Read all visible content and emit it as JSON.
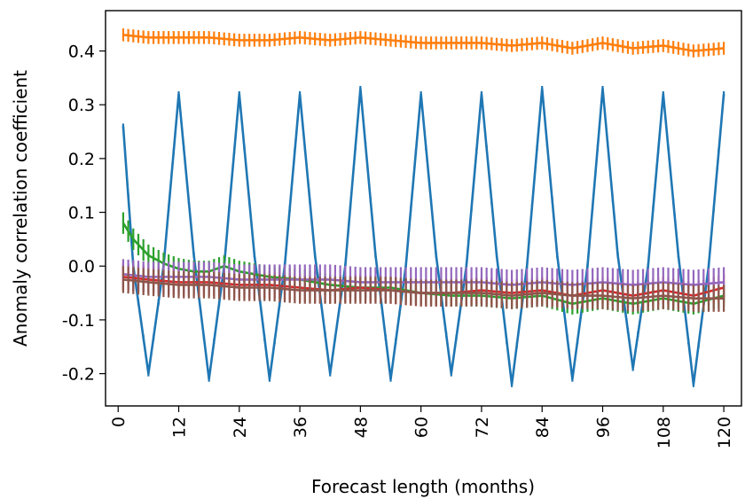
{
  "chart_data": {
    "type": "line",
    "title": "",
    "xlabel": "Forecast length (months)",
    "ylabel": "Anomaly correlation coefficient",
    "xlim": [
      -2.5,
      123.5
    ],
    "ylim": [
      -0.26,
      0.475
    ],
    "xticks": [
      0,
      12,
      24,
      36,
      48,
      60,
      72,
      84,
      96,
      108,
      120
    ],
    "xtick_labels": [
      "0",
      "12",
      "24",
      "36",
      "48",
      "60",
      "72",
      "84",
      "96",
      "108",
      "120"
    ],
    "yticks": [
      0.4,
      0.3,
      0.2,
      0.1,
      0.0,
      -0.1,
      -0.2
    ],
    "ytick_labels": [
      "0.4",
      "0.3",
      "0.2",
      "0.1",
      "0.0",
      "-0.1",
      "-0.2"
    ],
    "grid": false,
    "legend": "none",
    "colors": [
      "#1f77b4",
      "#ff7f0e",
      "#2ca02c",
      "#d62728",
      "#9467bd",
      "#8c564b"
    ],
    "series": [
      {
        "color": "#1f77b4",
        "x": [
          1,
          3,
          6,
          9,
          12,
          15,
          18,
          21,
          24,
          27,
          30,
          33,
          36,
          39,
          42,
          45,
          48,
          51,
          54,
          57,
          60,
          63,
          66,
          69,
          72,
          75,
          78,
          81,
          84,
          87,
          90,
          93,
          96,
          99,
          102,
          105,
          108,
          111,
          114,
          117,
          120
        ],
        "y": [
          0.26,
          0.0,
          -0.2,
          0.0,
          0.32,
          0.02,
          -0.21,
          0.0,
          0.32,
          0.02,
          -0.21,
          0.0,
          0.32,
          0.02,
          -0.2,
          0.0,
          0.33,
          0.02,
          -0.21,
          0.0,
          0.32,
          0.02,
          -0.2,
          0.0,
          0.32,
          0.02,
          -0.22,
          0.0,
          0.33,
          0.02,
          -0.21,
          0.0,
          0.33,
          0.02,
          -0.19,
          0.0,
          0.32,
          0.02,
          -0.22,
          0.0,
          0.32
        ],
        "err": 0.005
      },
      {
        "color": "#ff7f0e",
        "x": [
          1,
          6,
          12,
          18,
          24,
          30,
          36,
          42,
          48,
          54,
          60,
          66,
          72,
          78,
          84,
          90,
          96,
          102,
          108,
          114,
          120
        ],
        "y": [
          0.43,
          0.425,
          0.425,
          0.425,
          0.42,
          0.42,
          0.425,
          0.42,
          0.425,
          0.42,
          0.415,
          0.415,
          0.415,
          0.41,
          0.415,
          0.405,
          0.415,
          0.405,
          0.41,
          0.4,
          0.405
        ],
        "err": 0.012
      },
      {
        "color": "#2ca02c",
        "x": [
          1,
          3,
          6,
          9,
          12,
          15,
          18,
          21,
          24,
          30,
          36,
          42,
          48,
          54,
          60,
          66,
          72,
          78,
          84,
          90,
          96,
          102,
          108,
          114,
          120
        ],
        "y": [
          0.08,
          0.05,
          0.02,
          0.005,
          -0.005,
          -0.01,
          -0.01,
          0.0,
          -0.01,
          -0.02,
          -0.025,
          -0.035,
          -0.04,
          -0.04,
          -0.05,
          -0.055,
          -0.055,
          -0.06,
          -0.055,
          -0.07,
          -0.06,
          -0.07,
          -0.06,
          -0.07,
          -0.055
        ],
        "err": 0.02
      },
      {
        "color": "#d62728",
        "x": [
          1,
          6,
          12,
          18,
          24,
          30,
          36,
          42,
          48,
          54,
          60,
          66,
          72,
          78,
          84,
          90,
          96,
          102,
          108,
          114,
          120
        ],
        "y": [
          -0.02,
          -0.025,
          -0.03,
          -0.03,
          -0.035,
          -0.035,
          -0.04,
          -0.045,
          -0.04,
          -0.045,
          -0.05,
          -0.05,
          -0.045,
          -0.05,
          -0.045,
          -0.055,
          -0.045,
          -0.055,
          -0.045,
          -0.055,
          -0.04
        ],
        "err": 0.025
      },
      {
        "color": "#9467bd",
        "x": [
          1,
          6,
          12,
          18,
          24,
          30,
          36,
          42,
          48,
          54,
          60,
          66,
          72,
          78,
          84,
          90,
          96,
          102,
          108,
          114,
          120
        ],
        "y": [
          -0.015,
          -0.02,
          -0.02,
          -0.02,
          -0.025,
          -0.025,
          -0.025,
          -0.025,
          -0.03,
          -0.03,
          -0.03,
          -0.03,
          -0.03,
          -0.035,
          -0.03,
          -0.035,
          -0.03,
          -0.035,
          -0.03,
          -0.035,
          -0.03
        ],
        "err": 0.028
      },
      {
        "color": "#8c564b",
        "x": [
          1,
          6,
          12,
          18,
          24,
          30,
          36,
          42,
          48,
          54,
          60,
          66,
          72,
          78,
          84,
          90,
          96,
          102,
          108,
          114,
          120
        ],
        "y": [
          -0.025,
          -0.03,
          -0.035,
          -0.035,
          -0.04,
          -0.04,
          -0.045,
          -0.045,
          -0.045,
          -0.045,
          -0.05,
          -0.05,
          -0.05,
          -0.055,
          -0.05,
          -0.055,
          -0.055,
          -0.06,
          -0.055,
          -0.06,
          -0.06
        ],
        "err": 0.025
      }
    ]
  }
}
